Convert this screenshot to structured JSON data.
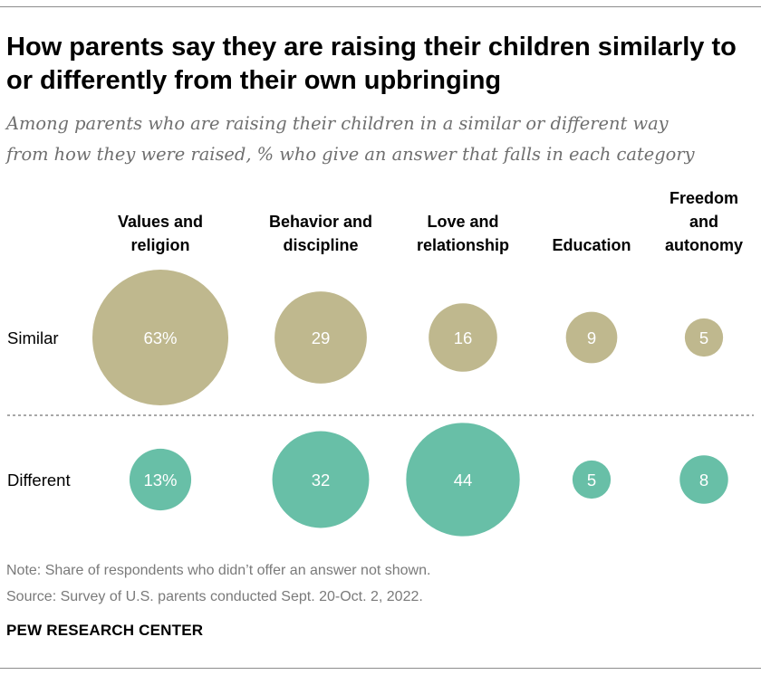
{
  "title": "How parents say they are raising their children similarly to or differently from their own upbringing",
  "subtitle_lines": [
    "Among parents who are raising their children in a similar or different way",
    "from how they were raised, % who give an answer that falls in each category"
  ],
  "note": "Note: Share of respondents who didn’t offer an answer not shown.",
  "source": "Source: Survey of U.S. parents conducted Sept. 20-Oct. 2, 2022.",
  "brand": "PEW RESEARCH CENTER",
  "colors": {
    "similar": "#bfb88e",
    "different": "#68bfa7"
  },
  "chart_data": {
    "type": "bubble",
    "title": "How parents say they are raising their children similarly to or differently from their own upbringing",
    "categories": [
      {
        "label_lines": [
          "Values and",
          "religion"
        ]
      },
      {
        "label_lines": [
          "Behavior and",
          "discipline"
        ]
      },
      {
        "label_lines": [
          "Love and",
          "relationship"
        ]
      },
      {
        "label_lines": [
          "Education"
        ]
      },
      {
        "label_lines": [
          "Freedom",
          "and",
          "autonomy"
        ]
      }
    ],
    "series": [
      {
        "name": "Similar",
        "values": [
          63,
          29,
          16,
          9,
          5
        ],
        "labels": [
          "63%",
          "29",
          "16",
          "9",
          "5"
        ]
      },
      {
        "name": "Different",
        "values": [
          13,
          32,
          44,
          5,
          8
        ],
        "labels": [
          "13%",
          "32",
          "44",
          "5",
          "8"
        ]
      }
    ]
  }
}
